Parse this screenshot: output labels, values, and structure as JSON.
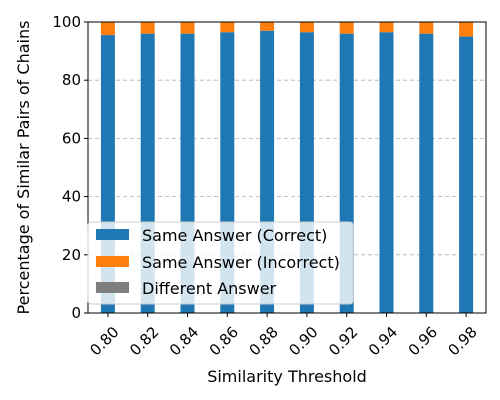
{
  "chart_data": {
    "type": "bar",
    "stacked": true,
    "categories": [
      "0.80",
      "0.82",
      "0.84",
      "0.86",
      "0.88",
      "0.90",
      "0.92",
      "0.94",
      "0.96",
      "0.98"
    ],
    "series": [
      {
        "name": "Same Answer (Correct)",
        "color": "#1f77b4",
        "values": [
          95.5,
          96.0,
          96.0,
          96.5,
          97.0,
          96.5,
          96.0,
          96.5,
          96.0,
          95.0
        ]
      },
      {
        "name": "Same Answer (Incorrect)",
        "color": "#ff7f0e",
        "values": [
          4.5,
          4.0,
          4.0,
          3.5,
          3.0,
          3.5,
          4.0,
          3.5,
          4.0,
          5.0
        ]
      },
      {
        "name": "Different Answer",
        "color": "#7f7f7f",
        "values": [
          0,
          0,
          0,
          0,
          0,
          0,
          0,
          0,
          0,
          0
        ]
      }
    ],
    "xlabel": "Similarity Threshold",
    "ylabel": "Percentage of Similar Pairs of Chains",
    "ylim": [
      0,
      100
    ],
    "yticks": [
      "0",
      "20",
      "40",
      "60",
      "80",
      "100"
    ],
    "grid": "y dashed",
    "legend_position": "lower-left"
  }
}
